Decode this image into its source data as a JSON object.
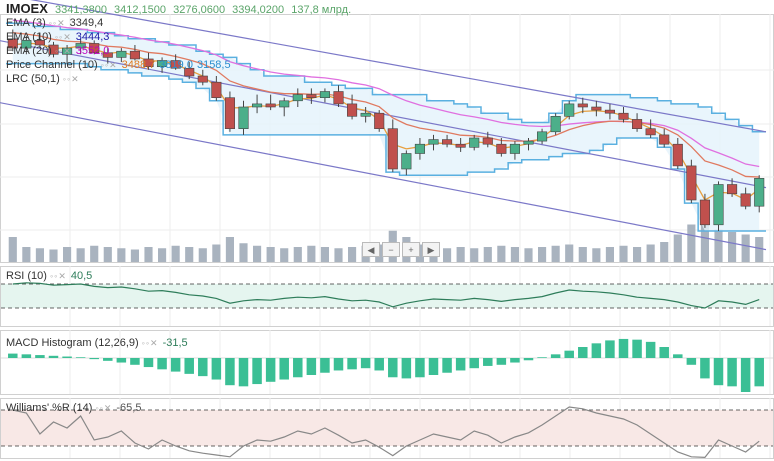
{
  "header": {
    "ticker": "IMOEX",
    "open": "3341,3800",
    "high": "3412,1500",
    "low": "3276,0600",
    "close": "3394,0200",
    "volume": "137,8 млрд."
  },
  "indicators": [
    {
      "name": "EMA (3)",
      "value": "3349,4",
      "color": "#333333"
    },
    {
      "name": "EMA (10)",
      "value": "3444,3",
      "color": "#1a1aa6"
    },
    {
      "name": "EMA (20)",
      "value": "3552,0",
      "color": "#c000c0"
    },
    {
      "name": "Price Channel (10)",
      "value": "3488,7",
      "value2": "3819,0",
      "value3": "3158,5",
      "color": "#e07a1f",
      "color2": "#2a8fcf"
    },
    {
      "name": "LRC (50,1)",
      "value": "",
      "color": "#333333"
    }
  ],
  "panels": {
    "rsi": {
      "name": "RSI (10)",
      "value": "40,5"
    },
    "macd": {
      "name": "MACD Histogram (12,26,9)",
      "value": "-31,5"
    },
    "williams": {
      "name": "Williams' %R (14)",
      "value": "-65,5"
    }
  },
  "colors": {
    "up": "#4caf8a",
    "down": "#c0504d",
    "channel": "#5ab0e0",
    "channel_fill": "#e3f2fb",
    "ema3": "#e8a040",
    "ema10": "#e07a60",
    "ema20": "#e070e0",
    "lrc": "#7b78c8",
    "volume": "#a9b3bf",
    "rsi": "#2e7d5a",
    "macd": "#3bbf95",
    "williams": "#888888"
  },
  "chart_data": [
    {
      "type": "candlestick",
      "title": "IMOEX",
      "ylim": [
        3100,
        3900
      ],
      "candles": [
        [
          3820,
          3850,
          3780,
          3790
        ],
        [
          3790,
          3830,
          3770,
          3815
        ],
        [
          3815,
          3840,
          3790,
          3800
        ],
        [
          3800,
          3810,
          3760,
          3770
        ],
        [
          3770,
          3800,
          3740,
          3790
        ],
        [
          3790,
          3820,
          3770,
          3805
        ],
        [
          3805,
          3815,
          3770,
          3775
        ],
        [
          3775,
          3790,
          3740,
          3760
        ],
        [
          3760,
          3790,
          3745,
          3780
        ],
        [
          3780,
          3800,
          3750,
          3755
        ],
        [
          3755,
          3775,
          3720,
          3730
        ],
        [
          3730,
          3760,
          3710,
          3750
        ],
        [
          3750,
          3770,
          3720,
          3725
        ],
        [
          3725,
          3745,
          3690,
          3700
        ],
        [
          3700,
          3720,
          3670,
          3680
        ],
        [
          3680,
          3700,
          3620,
          3630
        ],
        [
          3630,
          3650,
          3520,
          3530
        ],
        [
          3530,
          3620,
          3510,
          3600
        ],
        [
          3600,
          3640,
          3580,
          3610
        ],
        [
          3610,
          3640,
          3590,
          3600
        ],
        [
          3600,
          3630,
          3570,
          3620
        ],
        [
          3620,
          3660,
          3600,
          3640
        ],
        [
          3640,
          3660,
          3610,
          3630
        ],
        [
          3630,
          3660,
          3615,
          3650
        ],
        [
          3650,
          3670,
          3600,
          3610
        ],
        [
          3610,
          3640,
          3560,
          3570
        ],
        [
          3570,
          3600,
          3550,
          3580
        ],
        [
          3580,
          3590,
          3520,
          3530
        ],
        [
          3530,
          3560,
          3390,
          3400
        ],
        [
          3400,
          3460,
          3380,
          3450
        ],
        [
          3450,
          3500,
          3430,
          3480
        ],
        [
          3480,
          3510,
          3460,
          3495
        ],
        [
          3495,
          3510,
          3470,
          3480
        ],
        [
          3480,
          3500,
          3455,
          3470
        ],
        [
          3470,
          3510,
          3460,
          3500
        ],
        [
          3500,
          3520,
          3470,
          3480
        ],
        [
          3480,
          3500,
          3440,
          3450
        ],
        [
          3450,
          3490,
          3430,
          3480
        ],
        [
          3480,
          3500,
          3460,
          3490
        ],
        [
          3490,
          3530,
          3480,
          3520
        ],
        [
          3520,
          3580,
          3510,
          3570
        ],
        [
          3570,
          3620,
          3560,
          3610
        ],
        [
          3610,
          3630,
          3580,
          3600
        ],
        [
          3600,
          3620,
          3570,
          3590
        ],
        [
          3590,
          3610,
          3560,
          3580
        ],
        [
          3580,
          3600,
          3550,
          3560
        ],
        [
          3560,
          3580,
          3520,
          3530
        ],
        [
          3530,
          3560,
          3500,
          3510
        ],
        [
          3510,
          3530,
          3470,
          3480
        ],
        [
          3480,
          3500,
          3400,
          3410
        ],
        [
          3410,
          3430,
          3290,
          3300
        ],
        [
          3300,
          3320,
          3210,
          3220
        ],
        [
          3220,
          3360,
          3200,
          3350
        ],
        [
          3350,
          3370,
          3310,
          3320
        ],
        [
          3320,
          3340,
          3270,
          3280
        ],
        [
          3280,
          3380,
          3260,
          3370
        ]
      ],
      "ema3": [
        3800,
        3806,
        3803,
        3790,
        3790,
        3797,
        3786,
        3773,
        3777,
        3766,
        3748,
        3749,
        3737,
        3719,
        3700,
        3665,
        3597,
        3598,
        3604,
        3602,
        3611,
        3626,
        3628,
        3639,
        3625,
        3597,
        3589,
        3559,
        3480,
        3465,
        3472,
        3484,
        3482,
        3476,
        3488,
        3484,
        3467,
        3473,
        3482,
        3501,
        3535,
        3573,
        3586,
        3588,
        3584,
        3572,
        3551,
        3531,
        3505,
        3457,
        3379,
        3300,
        3325,
        3322,
        3301,
        3336
      ],
      "ema10": [
        3840,
        3835,
        3829,
        3818,
        3812,
        3810,
        3804,
        3796,
        3793,
        3786,
        3776,
        3772,
        3763,
        3752,
        3739,
        3718,
        3684,
        3668,
        3658,
        3648,
        3643,
        3643,
        3641,
        3642,
        3636,
        3624,
        3616,
        3601,
        3565,
        3544,
        3532,
        3525,
        3518,
        3509,
        3507,
        3502,
        3492,
        3490,
        3490,
        3496,
        3509,
        3527,
        3540,
        3549,
        3554,
        3554,
        3550,
        3543,
        3532,
        3510,
        3472,
        3426,
        3413,
        3397,
        3376,
        3374
      ],
      "ema20": [
        3880,
        3875,
        3869,
        3862,
        3856,
        3852,
        3845,
        3838,
        3832,
        3825,
        3816,
        3810,
        3802,
        3792,
        3782,
        3768,
        3746,
        3733,
        3723,
        3713,
        3706,
        3702,
        3697,
        3694,
        3688,
        3678,
        3671,
        3659,
        3638,
        3620,
        3606,
        3596,
        3585,
        3575,
        3568,
        3560,
        3550,
        3544,
        3539,
        3537,
        3539,
        3545,
        3549,
        3552,
        3554,
        3553,
        3551,
        3547,
        3540,
        3525,
        3499,
        3468,
        3452,
        3435,
        3416,
        3408
      ],
      "channel_high": [
        3870,
        3870,
        3860,
        3860,
        3850,
        3850,
        3840,
        3840,
        3830,
        3820,
        3820,
        3810,
        3800,
        3800,
        3780,
        3770,
        3760,
        3740,
        3720,
        3700,
        3700,
        3700,
        3680,
        3680,
        3670,
        3660,
        3660,
        3640,
        3640,
        3640,
        3640,
        3620,
        3620,
        3610,
        3600,
        3580,
        3580,
        3560,
        3550,
        3550,
        3580,
        3620,
        3640,
        3640,
        3640,
        3640,
        3630,
        3630,
        3620,
        3610,
        3610,
        3600,
        3580,
        3560,
        3540,
        3520
      ],
      "channel_low": [
        3740,
        3740,
        3740,
        3740,
        3740,
        3740,
        3730,
        3720,
        3720,
        3710,
        3700,
        3700,
        3690,
        3680,
        3660,
        3620,
        3510,
        3510,
        3510,
        3510,
        3510,
        3510,
        3510,
        3510,
        3510,
        3510,
        3510,
        3510,
        3390,
        3380,
        3380,
        3380,
        3380,
        3380,
        3390,
        3390,
        3400,
        3420,
        3430,
        3430,
        3440,
        3450,
        3450,
        3460,
        3480,
        3500,
        3500,
        3500,
        3470,
        3400,
        3290,
        3200,
        3200,
        3200,
        3200,
        3200
      ],
      "lrc_center": [
        3760,
        3340
      ],
      "lrc_upper": [
        3910,
        3520
      ],
      "lrc_lower": [
        3560,
        3140
      ],
      "volume": [
        20,
        12,
        11,
        10,
        12,
        11,
        13,
        12,
        11,
        10,
        12,
        11,
        13,
        12,
        11,
        14,
        20,
        15,
        13,
        12,
        11,
        12,
        13,
        12,
        11,
        12,
        13,
        14,
        25,
        20,
        14,
        12,
        11,
        12,
        11,
        12,
        13,
        12,
        11,
        12,
        13,
        14,
        12,
        11,
        12,
        13,
        12,
        14,
        16,
        22,
        30,
        35,
        26,
        24,
        22,
        20
      ],
      "volume_max": 40
    },
    {
      "type": "line",
      "title": "RSI (10)",
      "ylim": [
        0,
        100
      ],
      "values": [
        70,
        72,
        71,
        68,
        69,
        70,
        66,
        64,
        65,
        62,
        58,
        59,
        56,
        52,
        50,
        46,
        38,
        42,
        44,
        43,
        46,
        48,
        47,
        49,
        45,
        42,
        43,
        40,
        32,
        38,
        42,
        45,
        44,
        43,
        46,
        44,
        41,
        44,
        46,
        49,
        55,
        60,
        58,
        57,
        55,
        52,
        48,
        46,
        44,
        40,
        34,
        30,
        42,
        40,
        36,
        44
      ]
    },
    {
      "type": "bar",
      "title": "MACD Histogram (12,26,9)",
      "values": [
        12,
        10,
        8,
        6,
        4,
        2,
        -2,
        -5,
        -8,
        -12,
        -16,
        -20,
        -24,
        -28,
        -32,
        -38,
        -48,
        -50,
        -46,
        -42,
        -38,
        -34,
        -30,
        -26,
        -22,
        -20,
        -18,
        -22,
        -34,
        -36,
        -34,
        -30,
        -26,
        -22,
        -18,
        -14,
        -12,
        -8,
        -4,
        2,
        10,
        20,
        30,
        40,
        48,
        52,
        50,
        44,
        30,
        10,
        -12,
        -36,
        -48,
        -50,
        -60,
        -50
      ]
    },
    {
      "type": "line",
      "title": "Williams' %R (14)",
      "ylim": [
        -100,
        0
      ],
      "values": [
        -20,
        -25,
        -60,
        -40,
        -50,
        -30,
        -70,
        -65,
        -55,
        -75,
        -85,
        -70,
        -80,
        -88,
        -92,
        -95,
        -98,
        -80,
        -70,
        -72,
        -65,
        -55,
        -60,
        -50,
        -62,
        -75,
        -70,
        -82,
        -96,
        -80,
        -70,
        -60,
        -65,
        -70,
        -55,
        -62,
        -75,
        -65,
        -58,
        -45,
        -30,
        -15,
        -18,
        -25,
        -30,
        -35,
        -45,
        -60,
        -75,
        -90,
        -98,
        -99,
        -70,
        -80,
        -90,
        -72
      ]
    }
  ]
}
